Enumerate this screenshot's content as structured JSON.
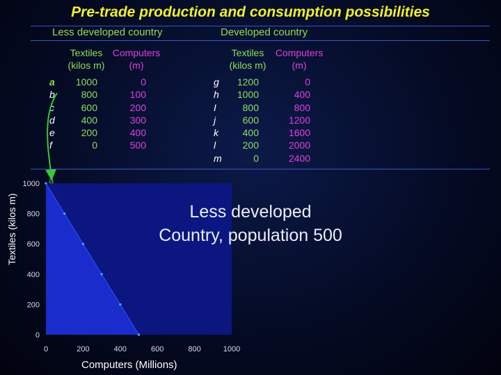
{
  "title": "Pre-trade production and consumption possibilities",
  "tables": {
    "ldc": {
      "header": "Less developed country",
      "col_textiles": [
        "Textiles",
        "(kilos m)"
      ],
      "col_computers": [
        "Computers",
        "(m)"
      ],
      "labels": [
        "a",
        "b",
        "c",
        "d",
        "e",
        "f"
      ],
      "textiles": [
        "1000",
        "800",
        "600",
        "400",
        "200",
        "0"
      ],
      "computers": [
        "0",
        "100",
        "200",
        "300",
        "400",
        "500"
      ]
    },
    "dc": {
      "header": "Developed country",
      "col_textiles": [
        "Textiles",
        "(kilos m)"
      ],
      "col_computers": [
        "Computers",
        "(m)"
      ],
      "labels": [
        "g",
        "h",
        "I",
        "j",
        "k",
        "l",
        "m"
      ],
      "textiles": [
        "1200",
        "1000",
        "800",
        "600",
        "400",
        "200",
        "0"
      ],
      "computers": [
        "0",
        "400",
        "800",
        "1200",
        "1600",
        "2000",
        "2400"
      ]
    }
  },
  "arrow_label": "a",
  "big_label": [
    "Less developed",
    "Country, population 500"
  ],
  "colors": {
    "title": "#f0f028",
    "header": "#8ce05a",
    "computers": "#e040e0",
    "plot_bg": "#0b1680",
    "area": "#1a2ccc",
    "point": "#52a6ff"
  },
  "chart_data": {
    "type": "scatter",
    "title": "",
    "xlabel": "Computers (Millions)",
    "ylabel": "Textiles (kilos m)",
    "xlim": [
      0,
      1000
    ],
    "ylim": [
      0,
      1000
    ],
    "x_ticks": [
      0,
      200,
      400,
      600,
      800,
      1000
    ],
    "y_ticks": [
      0,
      200,
      400,
      600,
      800,
      1000
    ],
    "x_tick_labels": [
      "0",
      "200",
      "400",
      "600",
      "800",
      "1000"
    ],
    "y_tick_labels": [
      "0",
      "200",
      "400",
      "600",
      "800",
      "1000"
    ],
    "points": [
      {
        "x": 0,
        "y": 1000
      },
      {
        "x": 100,
        "y": 800
      },
      {
        "x": 200,
        "y": 600
      },
      {
        "x": 300,
        "y": 400
      },
      {
        "x": 400,
        "y": 200
      },
      {
        "x": 500,
        "y": 0
      }
    ],
    "grid": false
  }
}
